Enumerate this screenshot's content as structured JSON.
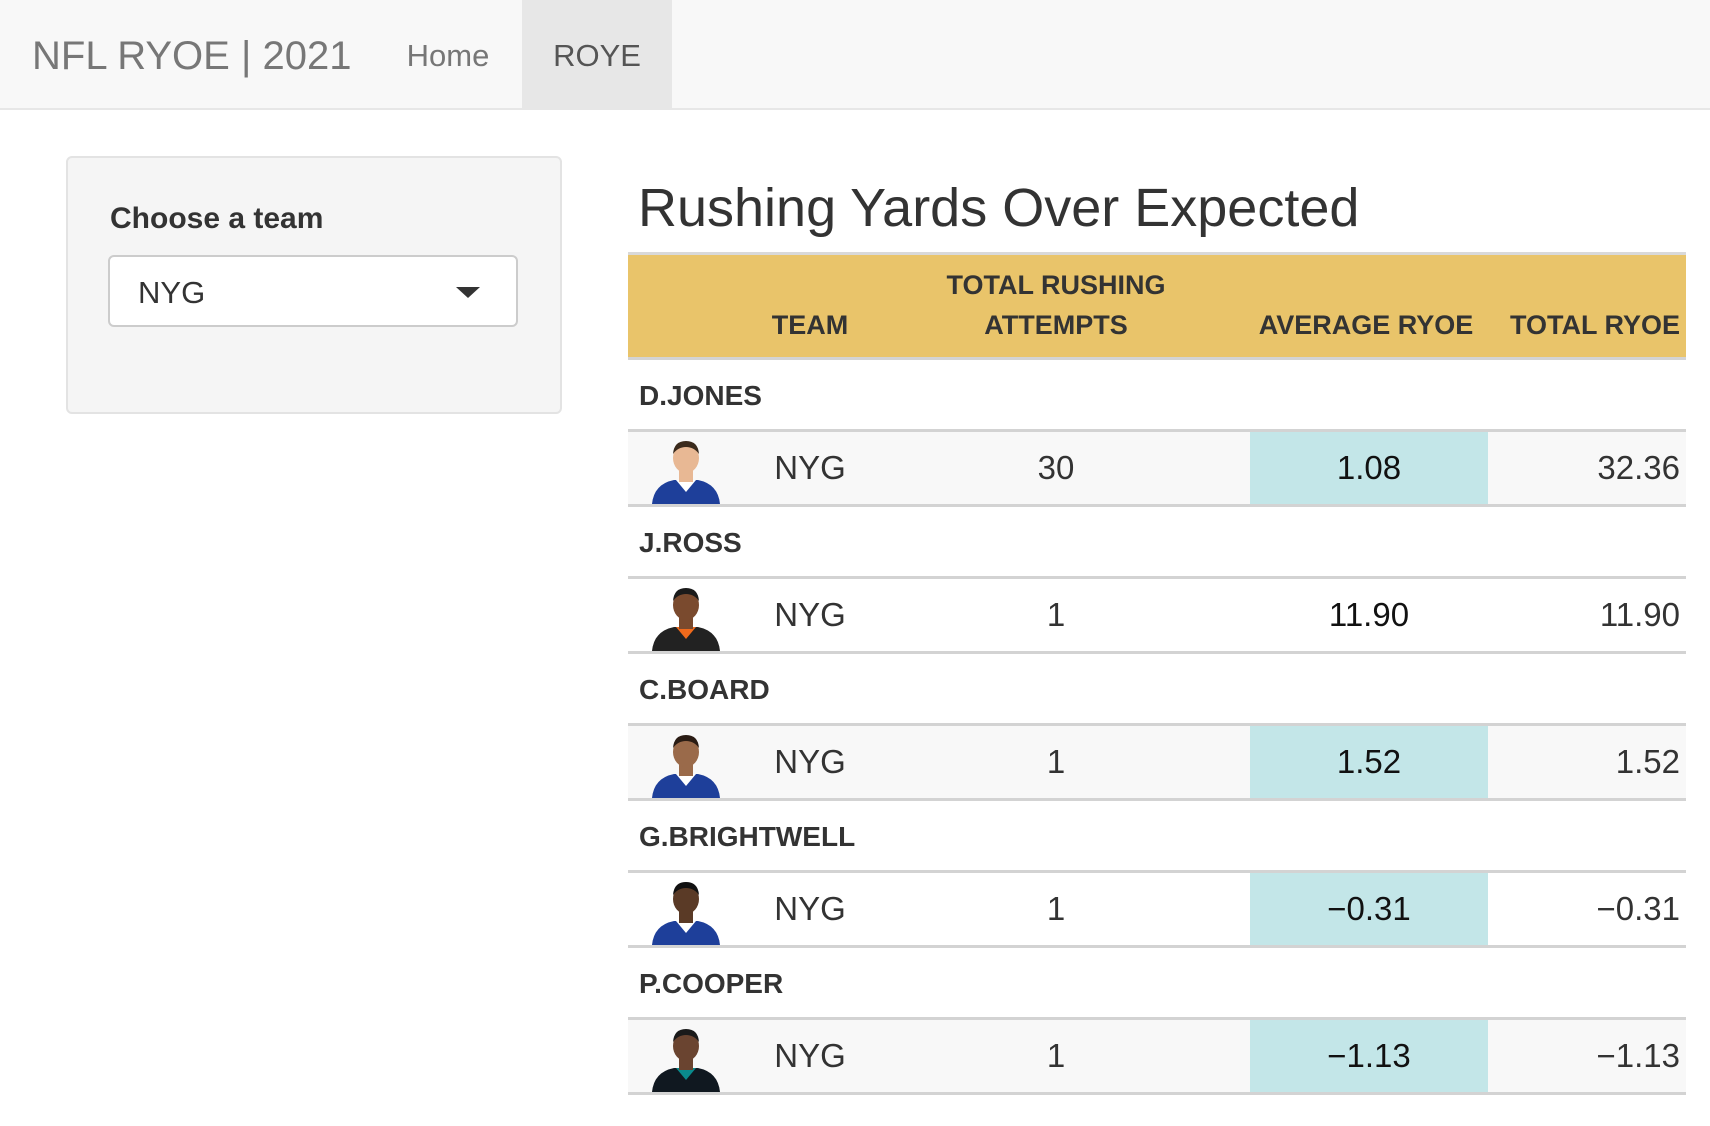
{
  "navbar": {
    "brand": "NFL RYOE | 2021",
    "links": [
      {
        "label": "Home"
      },
      {
        "label": "ROYE"
      }
    ]
  },
  "sidebar": {
    "label": "Choose a team",
    "selected_team": "NYG"
  },
  "main": {
    "title": "Rushing Yards Over Expected",
    "columns": {
      "team": "TEAM",
      "attempts": "TOTAL RUSHING ATTEMPTS",
      "average": "AVERAGE RYOE",
      "total": "TOTAL RYOE"
    },
    "players": [
      {
        "name": "D.JONES",
        "team": "NYG",
        "attempts": "30",
        "avg_ryoe": "1.08",
        "total_ryoe": "32.36",
        "highlight": true,
        "skin": "#e8b894",
        "hair": "#3a2a1c",
        "jersey": "#1e3f9a",
        "trim": "#ffffff"
      },
      {
        "name": "J.ROSS",
        "team": "NYG",
        "attempts": "1",
        "avg_ryoe": "11.90",
        "total_ryoe": "11.90",
        "highlight": false,
        "skin": "#7a4a2e",
        "hair": "#1a1a1a",
        "jersey": "#222222",
        "trim": "#f06a1c"
      },
      {
        "name": "C.BOARD",
        "team": "NYG",
        "attempts": "1",
        "avg_ryoe": "1.52",
        "total_ryoe": "1.52",
        "highlight": true,
        "skin": "#9a6a4a",
        "hair": "#2a1c14",
        "jersey": "#1e3f9a",
        "trim": "#ffffff"
      },
      {
        "name": "G.BRIGHTWELL",
        "team": "NYG",
        "attempts": "1",
        "avg_ryoe": "−0.31",
        "total_ryoe": "−0.31",
        "highlight": true,
        "skin": "#5a3a26",
        "hair": "#111111",
        "jersey": "#1e3f9a",
        "trim": "#ffffff"
      },
      {
        "name": "P.COOPER",
        "team": "NYG",
        "attempts": "1",
        "avg_ryoe": "−1.13",
        "total_ryoe": "−1.13",
        "highlight": true,
        "skin": "#6a4430",
        "hair": "#1a1a1a",
        "jersey": "#101820",
        "trim": "#0a8a8c"
      }
    ]
  }
}
